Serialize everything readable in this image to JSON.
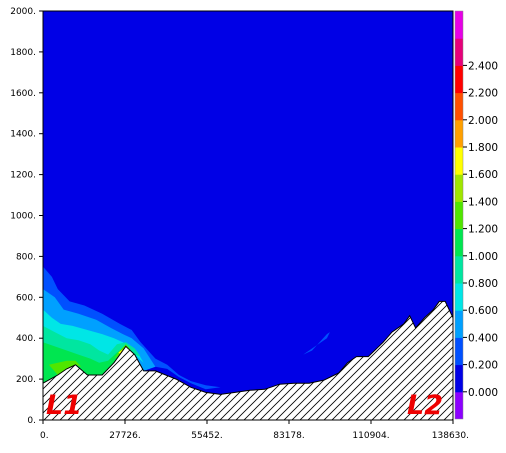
{
  "chart_data": {
    "type": "heatmap",
    "title": "",
    "xlabel": "",
    "ylabel": "",
    "x_range": [
      0,
      138630
    ],
    "y_range": [
      0,
      2000
    ],
    "x_ticks": [
      "0.",
      "27726.",
      "55452.",
      "83178.",
      "110904.",
      "138630."
    ],
    "y_ticks": [
      "0.",
      "200.",
      "400.",
      "600.",
      "800.",
      "1000.",
      "1200.",
      "1400.",
      "1600.",
      "1800.",
      "2000."
    ],
    "section_labels": {
      "start": "L1",
      "end": "L2"
    },
    "colorbar": {
      "labels": [
        "0.000",
        "0.200",
        "0.400",
        "0.600",
        "0.800",
        "1.000",
        "1.200",
        "1.400",
        "1.600",
        "1.800",
        "2.000",
        "2.200",
        "2.400"
      ],
      "colors": [
        "#0000e6",
        "#0050ff",
        "#00a0ff",
        "#00e6e6",
        "#00e6a0",
        "#00e650",
        "#50e600",
        "#a0e600",
        "#ffff00",
        "#ffa000",
        "#ff5000",
        "#ff0000",
        "#e6007a",
        "#e600e6"
      ],
      "below_color": "#8c00ff"
    },
    "background_level_color": "#0000e6",
    "terrain_profile": [
      [
        0,
        180
      ],
      [
        5000,
        220
      ],
      [
        8000,
        250
      ],
      [
        11000,
        270
      ],
      [
        15000,
        220
      ],
      [
        20000,
        220
      ],
      [
        24000,
        280
      ],
      [
        28000,
        360
      ],
      [
        31000,
        320
      ],
      [
        34000,
        240
      ],
      [
        38000,
        240
      ],
      [
        45000,
        200
      ],
      [
        50000,
        160
      ],
      [
        55000,
        135
      ],
      [
        60000,
        125
      ],
      [
        65000,
        135
      ],
      [
        70000,
        145
      ],
      [
        75000,
        150
      ],
      [
        80000,
        175
      ],
      [
        85000,
        180
      ],
      [
        90000,
        180
      ],
      [
        95000,
        195
      ],
      [
        100000,
        230
      ],
      [
        103000,
        280
      ],
      [
        106000,
        310
      ],
      [
        110000,
        310
      ],
      [
        115000,
        380
      ],
      [
        118000,
        430
      ],
      [
        122000,
        470
      ],
      [
        124000,
        510
      ],
      [
        126000,
        450
      ],
      [
        129000,
        500
      ],
      [
        132000,
        540
      ],
      [
        134000,
        580
      ],
      [
        136000,
        580
      ],
      [
        138630,
        500
      ]
    ],
    "contour_levels": [
      {
        "level": 0.2,
        "color": "#0050ff",
        "points": [
          [
            0,
            750
          ],
          [
            3000,
            700
          ],
          [
            5000,
            640
          ],
          [
            9000,
            580
          ],
          [
            14000,
            560
          ],
          [
            20000,
            520
          ],
          [
            26000,
            470
          ],
          [
            30000,
            440
          ],
          [
            33000,
            380
          ],
          [
            38000,
            300
          ],
          [
            42000,
            270
          ],
          [
            46000,
            220
          ],
          [
            50000,
            190
          ],
          [
            55000,
            170
          ],
          [
            60000,
            160
          ],
          [
            55000,
            150
          ],
          [
            50000,
            180
          ],
          [
            46000,
            210
          ],
          [
            42000,
            250
          ],
          [
            38000,
            260
          ],
          [
            34000,
            240
          ],
          [
            31000,
            320
          ],
          [
            28000,
            360
          ],
          [
            24000,
            280
          ],
          [
            20000,
            220
          ],
          [
            15000,
            220
          ],
          [
            11000,
            270
          ],
          [
            8000,
            250
          ],
          [
            5000,
            220
          ],
          [
            0,
            180
          ]
        ]
      },
      {
        "level": 0.4,
        "color": "#00a0ff",
        "points": [
          [
            0,
            640
          ],
          [
            4000,
            600
          ],
          [
            7000,
            540
          ],
          [
            12000,
            520
          ],
          [
            18000,
            490
          ],
          [
            23000,
            450
          ],
          [
            27000,
            420
          ],
          [
            30000,
            400
          ],
          [
            34000,
            350
          ],
          [
            38000,
            260
          ],
          [
            34000,
            240
          ],
          [
            31000,
            320
          ],
          [
            28000,
            360
          ],
          [
            24000,
            280
          ],
          [
            20000,
            220
          ],
          [
            15000,
            220
          ],
          [
            11000,
            270
          ],
          [
            8000,
            250
          ],
          [
            5000,
            220
          ],
          [
            0,
            180
          ]
        ]
      },
      {
        "level": 0.6,
        "color": "#00e6e6",
        "points": [
          [
            0,
            540
          ],
          [
            3000,
            500
          ],
          [
            6000,
            470
          ],
          [
            10000,
            460
          ],
          [
            15000,
            440
          ],
          [
            20000,
            420
          ],
          [
            24000,
            400
          ],
          [
            27000,
            380
          ],
          [
            29000,
            350
          ],
          [
            32000,
            330
          ],
          [
            34000,
            280
          ],
          [
            31000,
            320
          ],
          [
            28000,
            360
          ],
          [
            24000,
            280
          ],
          [
            20000,
            220
          ],
          [
            15000,
            220
          ],
          [
            11000,
            270
          ],
          [
            8000,
            250
          ],
          [
            5000,
            220
          ],
          [
            0,
            180
          ]
        ]
      },
      {
        "level": 0.8,
        "color": "#00e6a0",
        "points": [
          [
            0,
            460
          ],
          [
            4000,
            430
          ],
          [
            8000,
            400
          ],
          [
            12000,
            390
          ],
          [
            16000,
            370
          ],
          [
            19000,
            340
          ],
          [
            22000,
            320
          ],
          [
            25000,
            370
          ],
          [
            28000,
            380
          ],
          [
            31000,
            350
          ],
          [
            33000,
            310
          ],
          [
            31000,
            320
          ],
          [
            28000,
            360
          ],
          [
            24000,
            280
          ],
          [
            20000,
            220
          ],
          [
            15000,
            220
          ],
          [
            11000,
            270
          ],
          [
            8000,
            250
          ],
          [
            5000,
            220
          ],
          [
            0,
            180
          ]
        ]
      },
      {
        "level": 1.0,
        "color": "#00e650",
        "points": [
          [
            0,
            380
          ],
          [
            4000,
            360
          ],
          [
            8000,
            340
          ],
          [
            12000,
            320
          ],
          [
            16000,
            300
          ],
          [
            19000,
            280
          ],
          [
            22000,
            290
          ],
          [
            25000,
            330
          ],
          [
            28000,
            360
          ],
          [
            30000,
            330
          ],
          [
            32000,
            300
          ],
          [
            31000,
            320
          ],
          [
            28000,
            360
          ],
          [
            24000,
            280
          ],
          [
            20000,
            220
          ],
          [
            15000,
            220
          ],
          [
            11000,
            270
          ],
          [
            8000,
            250
          ],
          [
            5000,
            220
          ],
          [
            0,
            180
          ]
        ]
      },
      {
        "level": 1.2,
        "color": "#50e600",
        "points": [
          [
            2000,
            270
          ],
          [
            5000,
            280
          ],
          [
            8000,
            290
          ],
          [
            11000,
            290
          ],
          [
            13000,
            260
          ],
          [
            11000,
            270
          ],
          [
            8000,
            250
          ],
          [
            5000,
            220
          ]
        ]
      },
      {
        "level": 1.2,
        "color": "#50e600",
        "points": [
          [
            24000,
            300
          ],
          [
            26000,
            340
          ],
          [
            28000,
            370
          ],
          [
            30000,
            340
          ],
          [
            28000,
            360
          ],
          [
            26000,
            320
          ]
        ]
      },
      {
        "level": 1.4,
        "color": "#ffff00",
        "points": [
          [
            25500,
            330
          ],
          [
            27000,
            345
          ],
          [
            28500,
            350
          ],
          [
            27500,
            330
          ],
          [
            26500,
            320
          ]
        ]
      },
      {
        "level": 0.2,
        "color": "#0050ff",
        "points": [
          [
            88000,
            320
          ],
          [
            91000,
            340
          ],
          [
            96000,
            420
          ],
          [
            97000,
            430
          ],
          [
            96000,
            400
          ],
          [
            92000,
            360
          ],
          [
            89000,
            330
          ]
        ]
      }
    ]
  }
}
